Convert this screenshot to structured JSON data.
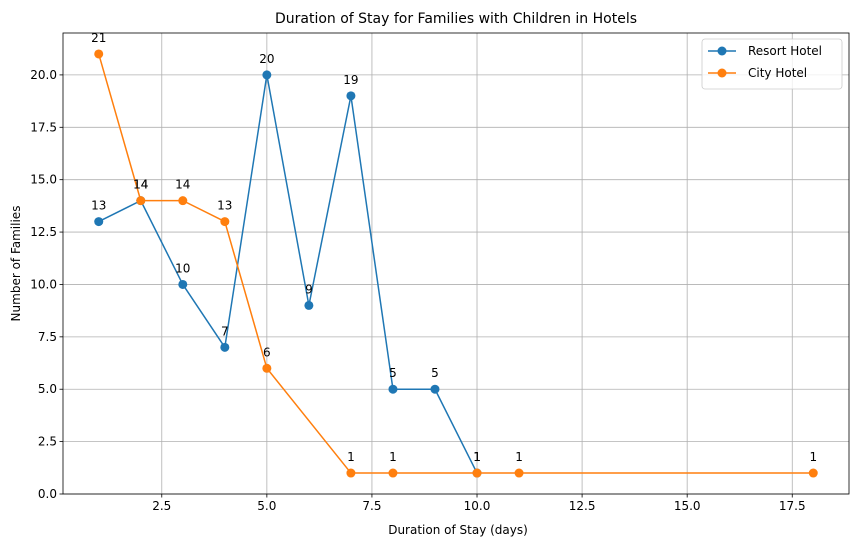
{
  "chart_data": {
    "type": "line",
    "title": "Duration of Stay for Families with Children in Hotels",
    "xlabel": "Duration of Stay (days)",
    "ylabel": "Number of Families",
    "xlim": [
      0.15,
      18.85
    ],
    "ylim": [
      0,
      22
    ],
    "x_ticks": [
      2.5,
      5.0,
      7.5,
      10.0,
      12.5,
      15.0,
      17.5
    ],
    "x_tick_labels": [
      "2.5",
      "5.0",
      "7.5",
      "10.0",
      "12.5",
      "15.0",
      "17.5"
    ],
    "y_ticks": [
      0,
      2.5,
      5,
      7.5,
      10,
      12.5,
      15,
      17.5,
      20
    ],
    "y_tick_labels": [
      "0.0",
      "2.5",
      "5.0",
      "7.5",
      "10.0",
      "12.5",
      "15.0",
      "17.5",
      "20.0"
    ],
    "grid": true,
    "legend_position": "top-right",
    "series": [
      {
        "name": "Resort Hotel",
        "color": "#1f77b4",
        "x": [
          1,
          2,
          3,
          4,
          5,
          6,
          7,
          8,
          9,
          10
        ],
        "y": [
          13,
          14,
          10,
          7,
          20,
          9,
          19,
          5,
          5,
          1
        ],
        "labels": [
          "13",
          "14",
          "10",
          "7",
          "20",
          "9",
          "19",
          "5",
          "5",
          "1"
        ]
      },
      {
        "name": "City Hotel",
        "color": "#ff7f0e",
        "x": [
          1,
          2,
          3,
          4,
          5,
          7,
          8,
          10,
          11,
          18
        ],
        "y": [
          21,
          14,
          14,
          13,
          6,
          1,
          1,
          1,
          1,
          1
        ],
        "labels": [
          "21",
          "14",
          "14",
          "13",
          "6",
          "1",
          "1",
          "1",
          "1",
          "1"
        ]
      }
    ]
  }
}
